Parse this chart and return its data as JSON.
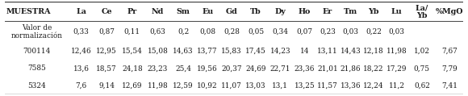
{
  "header_row": [
    "MUESTRA",
    "La",
    "Ce",
    "Pr",
    "Nd",
    "Sm",
    "Eu",
    "Gd",
    "Tb",
    "Dy",
    "Ho",
    "Er",
    "Tm",
    "Yb",
    "Lu",
    "La/\nYb",
    "%MgO"
  ],
  "rows": [
    [
      "Valor de\nnormalización",
      "0,33",
      "0,87",
      "0,11",
      "0,63",
      "0,2",
      "0,08",
      "0,28",
      "0,05",
      "0,34",
      "0,07",
      "0,23",
      "0,03",
      "0,22",
      "0,03",
      "",
      ""
    ],
    [
      "700114",
      "12,46",
      "12,95",
      "15,54",
      "15,08",
      "14,63",
      "13,77",
      "15,83",
      "17,45",
      "14,23",
      "14",
      "13,11",
      "14,43",
      "12,18",
      "11,98",
      "1,02",
      "7,67"
    ],
    [
      "7585",
      "13,6",
      "18,57",
      "24,18",
      "23,23",
      "25,4",
      "19,56",
      "20,37",
      "24,69",
      "22,71",
      "23,36",
      "21,01",
      "21,86",
      "18,22",
      "17,29",
      "0,75",
      "7,79"
    ],
    [
      "5324",
      "7,6",
      "9,14",
      "12,69",
      "11,98",
      "12,59",
      "10,92",
      "11,07",
      "13,03",
      "13,1",
      "13,25",
      "11,57",
      "13,36",
      "12,24",
      "11,2",
      "0,62",
      "7,41"
    ]
  ],
  "col_widths": [
    1.8,
    0.72,
    0.72,
    0.72,
    0.72,
    0.72,
    0.65,
    0.72,
    0.65,
    0.72,
    0.65,
    0.65,
    0.65,
    0.65,
    0.65,
    0.78,
    0.78
  ],
  "bg_color": "#ffffff",
  "text_color": "#1a1a1a",
  "line_color": "#444444",
  "header_fontsize": 6.8,
  "cell_fontsize": 6.4,
  "figsize": [
    5.8,
    1.19
  ],
  "dpi": 100
}
